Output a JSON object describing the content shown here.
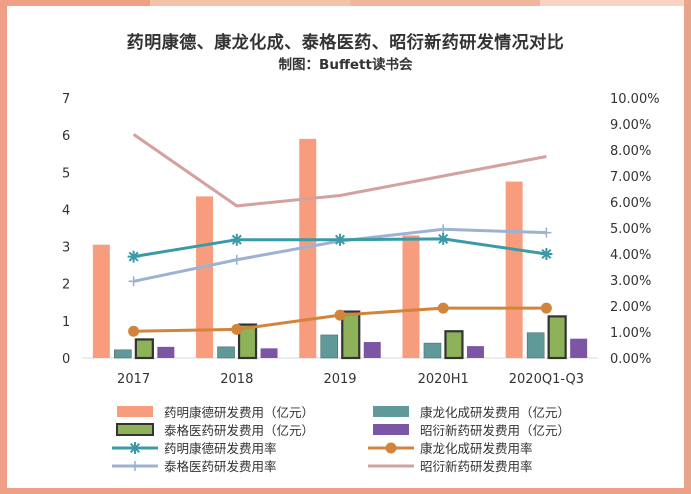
{
  "chart_data": {
    "type": "bar",
    "title": "药明康德、康龙化成、泰格医药、昭衍新药研发情况对比",
    "subtitle": "制图：Buffett读书会",
    "categories": [
      "2017",
      "2018",
      "2019",
      "2020H1",
      "2020Q1-Q3"
    ],
    "ylim": [
      0,
      7
    ],
    "y2lim": [
      0,
      0.1
    ],
    "y_ticks": [
      "0",
      "1",
      "2",
      "3",
      "4",
      "5",
      "6",
      "7"
    ],
    "y2_ticks": [
      "0.00%",
      "1.00%",
      "2.00%",
      "3.00%",
      "4.00%",
      "5.00%",
      "6.00%",
      "7.00%",
      "8.00%",
      "9.00%",
      "10.00%"
    ],
    "bar_series": [
      {
        "name": "药明康德研发费用（亿元）",
        "color": "#f79d7e",
        "values": [
          3.05,
          4.35,
          5.9,
          3.3,
          4.75
        ]
      },
      {
        "name": "康龙化成研发费用（亿元）",
        "color": "#5f9a98",
        "values": [
          0.22,
          0.3,
          0.62,
          0.4,
          0.68
        ]
      },
      {
        "name": "泰格医药研发费用（亿元）",
        "color": "#8db259",
        "values": [
          0.5,
          0.9,
          1.25,
          0.72,
          1.12
        ]
      },
      {
        "name": "昭衍新药研发费用（亿元）",
        "color": "#7c56a4",
        "values": [
          0.3,
          0.26,
          0.43,
          0.32,
          0.52
        ]
      }
    ],
    "line_series": [
      {
        "name": "药明康德研发费用率",
        "color": "#3a9aa8",
        "marker": "star",
        "values": [
          0.039,
          0.0455,
          0.0455,
          0.0458,
          0.04
        ]
      },
      {
        "name": "康龙化成研发费用率",
        "color": "#d3843b",
        "marker": "circle",
        "values": [
          0.0103,
          0.011,
          0.0165,
          0.0192,
          0.0192
        ]
      },
      {
        "name": "泰格医药研发费用率",
        "color": "#9db2d2",
        "marker": "plus",
        "values": [
          0.0295,
          0.0378,
          0.045,
          0.0495,
          0.0482
        ]
      },
      {
        "name": "昭衍新药研发费用率",
        "color": "#d3a29e",
        "marker": "none",
        "values": [
          0.086,
          0.0585,
          0.0625,
          0.07,
          0.0775
        ]
      }
    ],
    "legend_position": "bottom",
    "grid": false
  }
}
